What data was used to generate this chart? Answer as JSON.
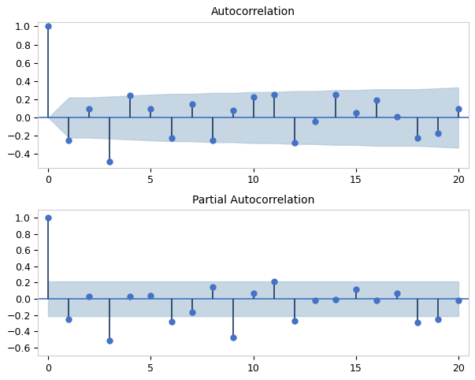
{
  "acf_values": [
    1.0,
    -0.25,
    0.1,
    -0.48,
    0.24,
    0.1,
    -0.22,
    0.15,
    -0.25,
    0.08,
    0.23,
    0.25,
    -0.28,
    -0.04,
    0.25,
    0.05,
    0.19,
    0.01,
    -0.22,
    -0.17,
    0.1
  ],
  "pacf_values": [
    1.0,
    -0.25,
    0.03,
    -0.52,
    0.03,
    0.04,
    -0.28,
    -0.17,
    0.15,
    -0.48,
    0.07,
    0.21,
    -0.27,
    -0.02,
    -0.01,
    0.12,
    -0.02,
    0.07,
    -0.29,
    -0.25,
    -0.02
  ],
  "n_lags": 20,
  "acf_conf_upper": [
    0.0,
    0.22,
    0.22,
    0.23,
    0.24,
    0.25,
    0.26,
    0.26,
    0.27,
    0.27,
    0.28,
    0.28,
    0.29,
    0.29,
    0.3,
    0.3,
    0.31,
    0.31,
    0.31,
    0.32,
    0.33
  ],
  "acf_conf_lower": [
    0.0,
    -0.22,
    -0.22,
    -0.23,
    -0.24,
    -0.25,
    -0.26,
    -0.26,
    -0.27,
    -0.27,
    -0.28,
    -0.28,
    -0.29,
    -0.29,
    -0.3,
    -0.3,
    -0.31,
    -0.31,
    -0.31,
    -0.32,
    -0.33
  ],
  "pacf_conf_upper": 0.21,
  "pacf_conf_lower": -0.21,
  "acf_title": "Autocorrelation",
  "pacf_title": "Partial Autocorrelation",
  "stem_color": "#17375e",
  "marker_color": "#4472c4",
  "conf_fill_color": "#aec6d8",
  "hline_color": "#4472c4",
  "acf_ylim": [
    -0.55,
    1.05
  ],
  "pacf_ylim": [
    -0.7,
    1.1
  ],
  "acf_yticks": [
    -0.4,
    -0.2,
    0.0,
    0.2,
    0.4,
    0.6,
    0.8,
    1.0
  ],
  "pacf_yticks": [
    -0.6,
    -0.4,
    -0.2,
    0.0,
    0.2,
    0.4,
    0.6,
    0.8,
    1.0
  ],
  "xticks": [
    0,
    5,
    10,
    15,
    20
  ],
  "fig_width": 6.03,
  "fig_height": 4.82,
  "dpi": 100
}
